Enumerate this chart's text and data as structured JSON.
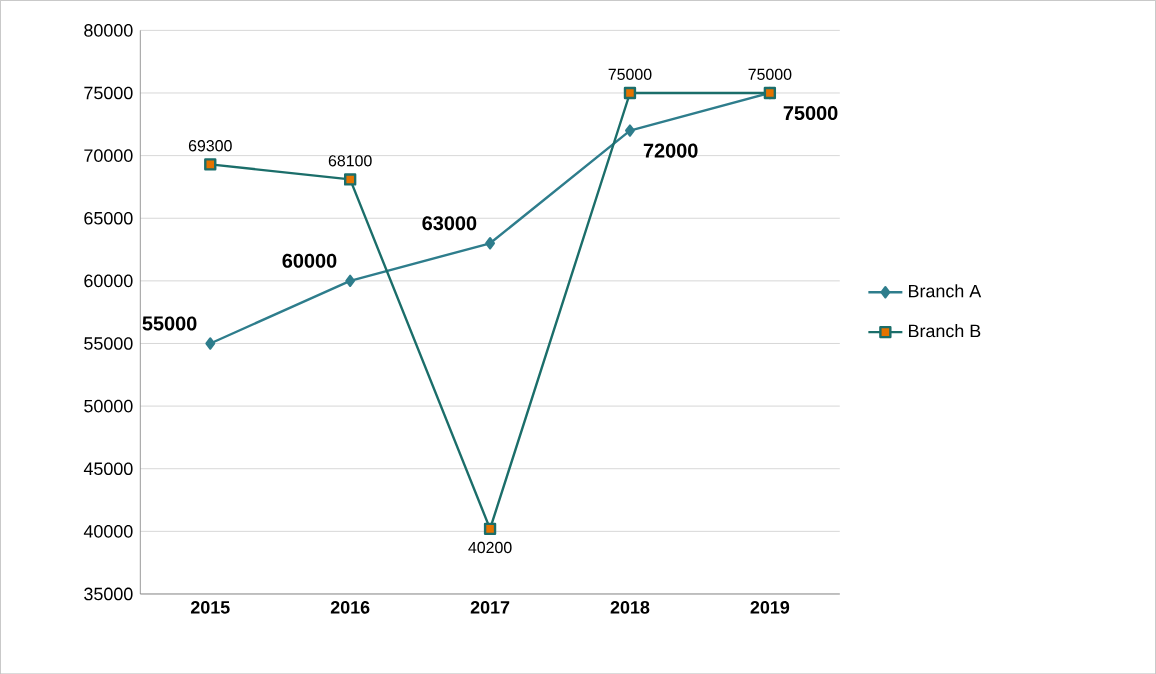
{
  "chart_data": {
    "type": "line",
    "categories": [
      "2015",
      "2016",
      "2017",
      "2018",
      "2019"
    ],
    "series": [
      {
        "name": "Branch A",
        "color": "#2e7d8c",
        "values": [
          55000,
          60000,
          63000,
          72000,
          75000
        ],
        "marker": "diamond"
      },
      {
        "name": "Branch B",
        "color": "#1b6e6a",
        "values": [
          69300,
          68100,
          40200,
          75000,
          75000
        ],
        "marker": "square"
      }
    ],
    "ylim": [
      35000,
      80000
    ],
    "yticks": [
      35000,
      40000,
      45000,
      50000,
      55000,
      60000,
      65000,
      70000,
      75000,
      80000
    ],
    "grid": "y",
    "legend": "right",
    "data_labels": true
  }
}
